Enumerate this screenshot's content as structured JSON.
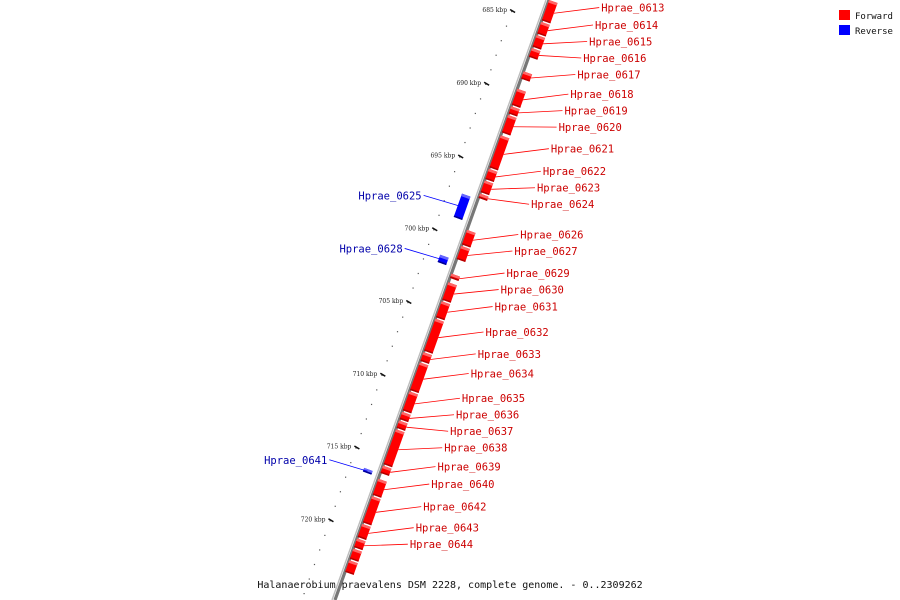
{
  "caption": "Halanaerobium praevalens DSM 2228, complete genome. - 0..2309262",
  "legend": [
    {
      "label": "Forward",
      "color": "#ff0000"
    },
    {
      "label": "Reverse",
      "color": "#0000ff"
    }
  ],
  "ticks": [
    {
      "label": "685 kbp",
      "pos": 685
    },
    {
      "label": "690 kbp",
      "pos": 690
    },
    {
      "label": "695 kbp",
      "pos": 695
    },
    {
      "label": "700 kbp",
      "pos": 700
    },
    {
      "label": "705 kbp",
      "pos": 705
    },
    {
      "label": "710 kbp",
      "pos": 710
    },
    {
      "label": "715 kbp",
      "pos": 715
    },
    {
      "label": "720 kbp",
      "pos": 720
    }
  ],
  "genes": [
    {
      "name": "Hprae_0613",
      "strand": "forward",
      "start": 684.2,
      "end": 685.6
    },
    {
      "name": "Hprae_0614",
      "strand": "forward",
      "start": 685.7,
      "end": 686.5
    },
    {
      "name": "Hprae_0615",
      "strand": "forward",
      "start": 686.6,
      "end": 687.4
    },
    {
      "name": "Hprae_0616",
      "strand": "forward",
      "start": 687.5,
      "end": 688.1
    },
    {
      "name": "Hprae_0617",
      "strand": "forward",
      "start": 689.1,
      "end": 689.6
    },
    {
      "name": "Hprae_0618",
      "strand": "forward",
      "start": 690.3,
      "end": 691.4
    },
    {
      "name": "Hprae_0619",
      "strand": "forward",
      "start": 691.5,
      "end": 692.0
    },
    {
      "name": "Hprae_0620",
      "strand": "forward",
      "start": 692.1,
      "end": 693.3
    },
    {
      "name": "Hprae_0621",
      "strand": "forward",
      "start": 693.5,
      "end": 695.7
    },
    {
      "name": "Hprae_0622",
      "strand": "forward",
      "start": 695.8,
      "end": 696.5
    },
    {
      "name": "Hprae_0623",
      "strand": "forward",
      "start": 696.6,
      "end": 697.4
    },
    {
      "name": "Hprae_0624",
      "strand": "forward",
      "start": 697.5,
      "end": 697.8
    },
    {
      "name": "Hprae_0625",
      "strand": "reverse",
      "start": 697.9,
      "end": 699.5
    },
    {
      "name": "Hprae_0626",
      "strand": "forward",
      "start": 700.0,
      "end": 701.0
    },
    {
      "name": "Hprae_0627",
      "strand": "forward",
      "start": 701.1,
      "end": 702.0
    },
    {
      "name": "Hprae_0628",
      "strand": "reverse",
      "start": 702.1,
      "end": 702.6
    },
    {
      "name": "Hprae_0629",
      "strand": "forward",
      "start": 703.0,
      "end": 703.3
    },
    {
      "name": "Hprae_0630",
      "strand": "forward",
      "start": 703.6,
      "end": 704.8
    },
    {
      "name": "Hprae_0631",
      "strand": "forward",
      "start": 704.9,
      "end": 706.0
    },
    {
      "name": "Hprae_0632",
      "strand": "forward",
      "start": 706.1,
      "end": 708.3
    },
    {
      "name": "Hprae_0633",
      "strand": "forward",
      "start": 708.4,
      "end": 709.0
    },
    {
      "name": "Hprae_0634",
      "strand": "forward",
      "start": 709.1,
      "end": 711.0
    },
    {
      "name": "Hprae_0635",
      "strand": "forward",
      "start": 711.1,
      "end": 712.4
    },
    {
      "name": "Hprae_0636",
      "strand": "forward",
      "start": 712.5,
      "end": 713.0
    },
    {
      "name": "Hprae_0637",
      "strand": "forward",
      "start": 713.1,
      "end": 713.6
    },
    {
      "name": "Hprae_0638",
      "strand": "forward",
      "start": 713.7,
      "end": 716.1
    },
    {
      "name": "Hprae_0639",
      "strand": "forward",
      "start": 716.2,
      "end": 716.7
    },
    {
      "name": "Hprae_0641",
      "strand": "reverse",
      "start": 716.75,
      "end": 717.0
    },
    {
      "name": "Hprae_0640",
      "strand": "forward",
      "start": 717.1,
      "end": 718.2
    },
    {
      "name": "Hprae_0642",
      "strand": "forward",
      "start": 718.3,
      "end": 720.1
    },
    {
      "name": "Hprae_0643",
      "strand": "forward",
      "start": 720.2,
      "end": 721.1
    },
    {
      "name": "Hprae_0644",
      "strand": "forward",
      "start": 721.2,
      "end": 721.8
    },
    {
      "name": "",
      "strand": "forward",
      "start": 721.9,
      "end": 722.6
    },
    {
      "name": "",
      "strand": "forward",
      "start": 722.7,
      "end": 723.5
    }
  ]
}
